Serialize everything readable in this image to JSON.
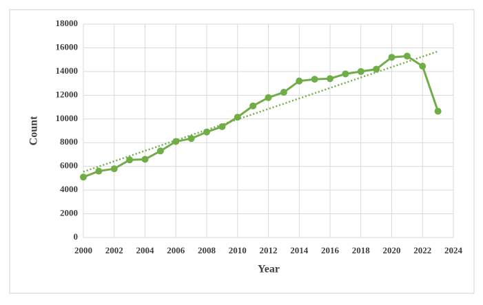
{
  "chart_data": {
    "type": "line",
    "x_label": "Year",
    "y_label": "Count",
    "x": [
      2000,
      2001,
      2002,
      2003,
      2004,
      2005,
      2006,
      2007,
      2008,
      2009,
      2010,
      2011,
      2012,
      2013,
      2014,
      2015,
      2016,
      2017,
      2018,
      2019,
      2020,
      2021,
      2022,
      2023
    ],
    "series": [
      {
        "color": "#70ad47",
        "values": [
          5100,
          5600,
          5800,
          6550,
          6600,
          7300,
          8100,
          8350,
          8900,
          9350,
          10150,
          11100,
          11800,
          12250,
          13200,
          13350,
          13400,
          13800,
          14000,
          14200,
          15200,
          15300,
          14450,
          10650
        ]
      }
    ],
    "trendline": {
      "x": [
        2000,
        2023
      ],
      "values": [
        5550,
        15700
      ],
      "color": "#70ad47",
      "style": "dotted"
    },
    "xlim": [
      2000,
      2024
    ],
    "xticks": [
      2000,
      2002,
      2004,
      2006,
      2008,
      2010,
      2012,
      2014,
      2016,
      2018,
      2020,
      2022,
      2024
    ],
    "ylim": [
      0,
      18000
    ],
    "yticks": [
      0,
      2000,
      4000,
      6000,
      8000,
      10000,
      12000,
      14000,
      16000,
      18000
    ],
    "grid": true
  }
}
